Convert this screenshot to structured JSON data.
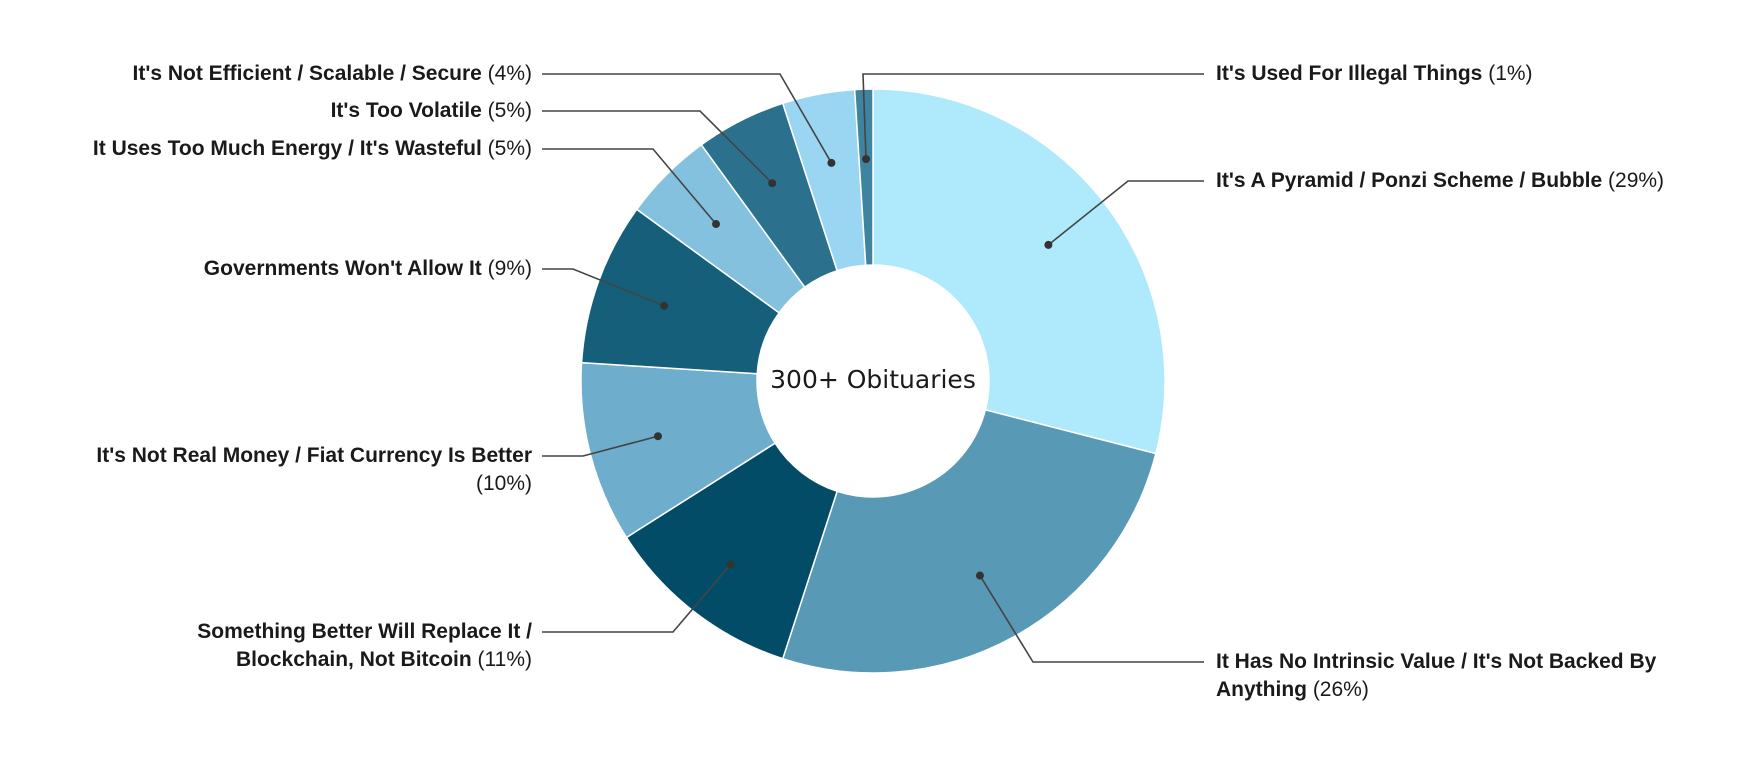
{
  "chart_data": {
    "type": "pie",
    "donut": true,
    "center_label": "300+ Obituaries",
    "slices": [
      {
        "name": "It's A Pyramid / Ponzi Scheme / Bubble",
        "value_label": "(29%)",
        "value": 29,
        "color": "#aeeafb"
      },
      {
        "name": "It Has No Intrinsic Value / It's Not Backed By Anything",
        "value_label": "(26%)",
        "value": 26,
        "color": "#5899b6"
      },
      {
        "name": "Something Better Will Replace It / Blockchain, Not Bitcoin",
        "value_label": "(11%)",
        "value": 11,
        "color": "#034c68"
      },
      {
        "name": "It's Not Real Money / Fiat Currency Is Better",
        "value_label": "(10%)",
        "value": 10,
        "color": "#6eadcb"
      },
      {
        "name": "Governments Won't Allow It",
        "value_label": "(9%)",
        "value": 9,
        "color": "#155f7b"
      },
      {
        "name": "It Uses Too Much Energy / It's Wasteful",
        "value_label": "(5%)",
        "value": 5,
        "color": "#84c1de"
      },
      {
        "name": "It's Too Volatile",
        "value_label": "(5%)",
        "value": 5,
        "color": "#2b718e"
      },
      {
        "name": "It's Not Efficient / Scalable / Secure",
        "value_label": "(4%)",
        "value": 4,
        "color": "#9ad6f2"
      },
      {
        "name": "It's Used For Illegal Things",
        "value_label": "(1%)",
        "value": 1,
        "color": "#3e839f"
      }
    ]
  }
}
